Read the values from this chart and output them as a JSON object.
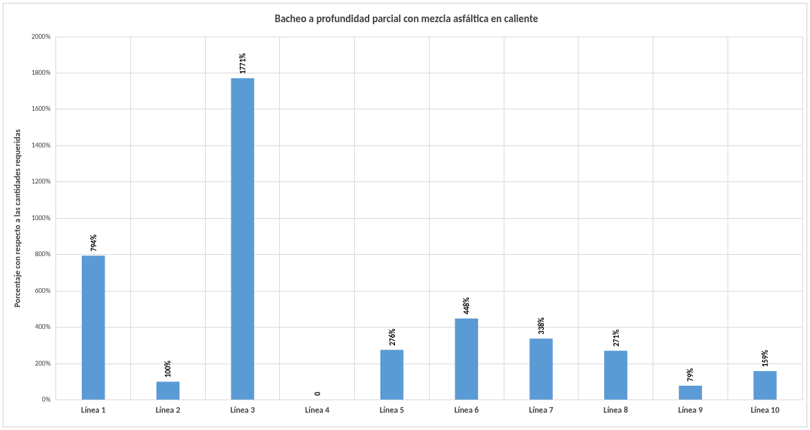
{
  "chart_data": {
    "type": "bar",
    "title": "Bacheo a profundidad parcial con mezcla asfáltica en caliente",
    "ylabel": "Porcentaje con respecto a las cantidades requeridas",
    "categories": [
      "Línea 1",
      "Línea 2",
      "Línea 3",
      "Línea 4",
      "Línea 5",
      "Línea 6",
      "Línea 7",
      "Línea 8",
      "Línea 9",
      "Línea 10"
    ],
    "values": [
      794,
      100,
      1771,
      0,
      276,
      448,
      338,
      271,
      79,
      159
    ],
    "value_labels": [
      "794%",
      "100%",
      "1771%",
      "0",
      "276%",
      "448%",
      "338%",
      "271%",
      "79%",
      "159%"
    ],
    "color": "#5b9bd5",
    "ylim": [
      0,
      2000
    ],
    "yticks": [
      {
        "value": 0,
        "label": "0%"
      },
      {
        "value": 200,
        "label": "200%"
      },
      {
        "value": 400,
        "label": "400%"
      },
      {
        "value": 600,
        "label": "600%"
      },
      {
        "value": 800,
        "label": "800%"
      },
      {
        "value": 1000,
        "label": "1000%"
      },
      {
        "value": 1200,
        "label": "1200%"
      },
      {
        "value": 1400,
        "label": "1400%"
      },
      {
        "value": 1600,
        "label": "1600%"
      },
      {
        "value": 1800,
        "label": "1800%"
      },
      {
        "value": 2000,
        "label": "2000%"
      }
    ],
    "grid": true,
    "legend": false
  }
}
